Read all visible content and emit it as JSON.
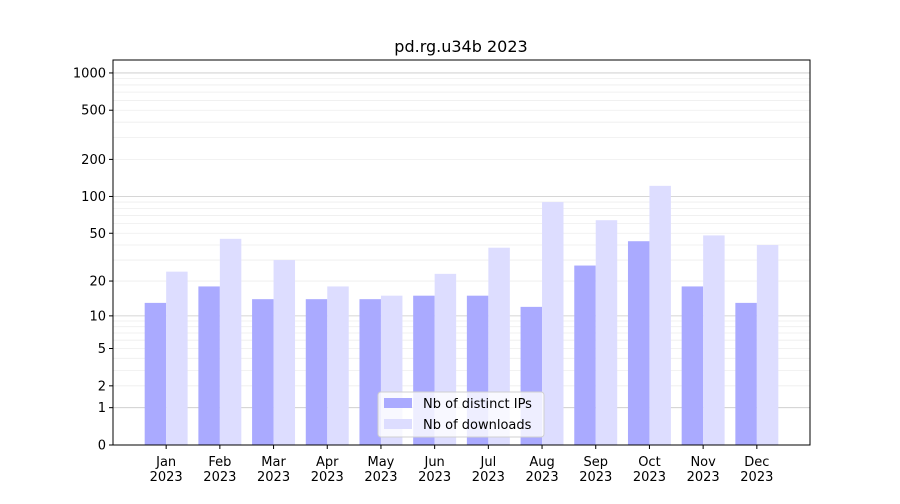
{
  "chart_data": {
    "type": "bar",
    "title": "pd.rg.u34b 2023",
    "xlabel": "",
    "ylabel": "",
    "yscale": "log(1+y)",
    "ylim": [
      0,
      1200
    ],
    "grid": true,
    "legend_position": "bottom-center",
    "categories": [
      "Jan\n2023",
      "Feb\n2023",
      "Mar\n2023",
      "Apr\n2023",
      "May\n2023",
      "Jun\n2023",
      "Jul\n2023",
      "Aug\n2023",
      "Sep\n2023",
      "Oct\n2023",
      "Nov\n2023",
      "Dec\n2023"
    ],
    "yticks": [
      "0",
      "1",
      "2",
      "5",
      "10",
      "20",
      "50",
      "100",
      "200",
      "500",
      "1000"
    ],
    "series": [
      {
        "name": "Nb of distinct IPs",
        "color": "#aaaaff",
        "values": [
          13,
          18,
          14,
          14,
          14,
          15,
          15,
          12,
          27,
          43,
          18,
          13
        ]
      },
      {
        "name": "Nb of downloads",
        "color": "#ddddff",
        "values": [
          24,
          45,
          30,
          18,
          15,
          23,
          38,
          90,
          64,
          122,
          48,
          40
        ]
      }
    ]
  }
}
